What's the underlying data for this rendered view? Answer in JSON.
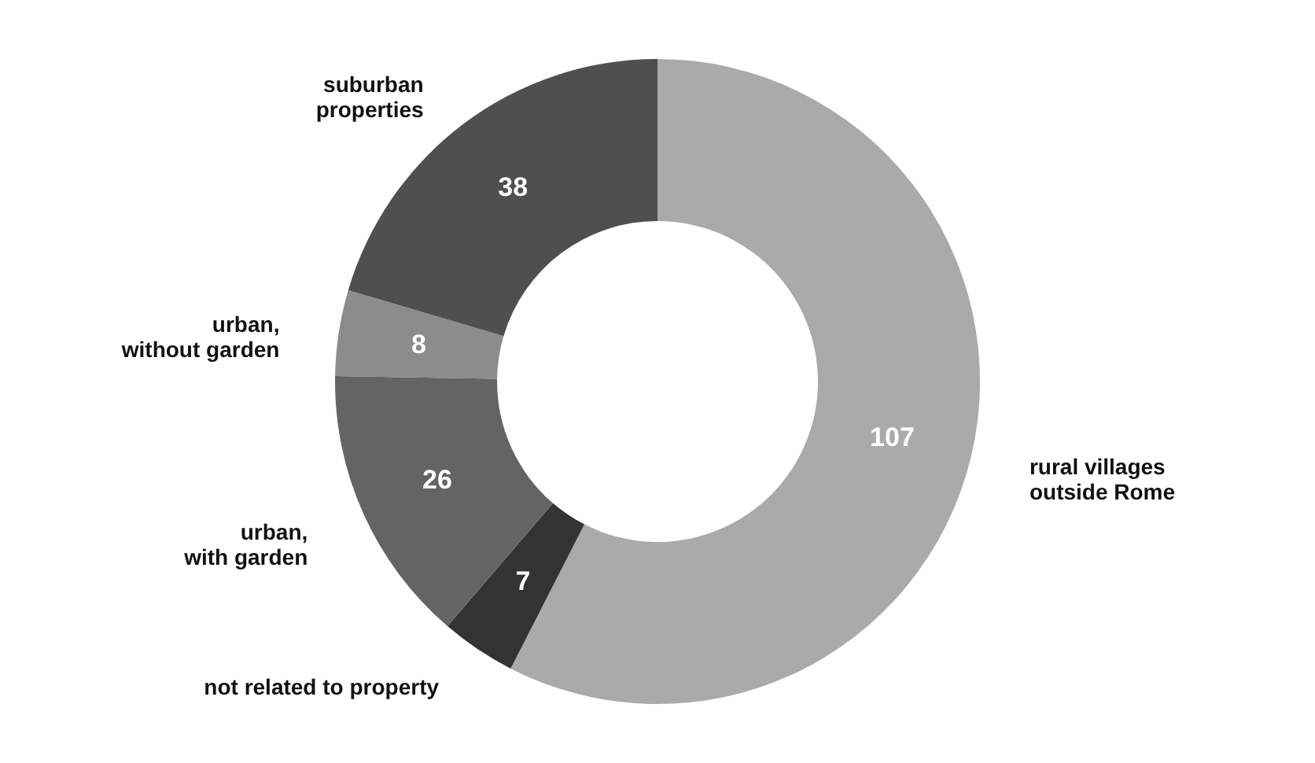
{
  "chart_data": {
    "type": "donut",
    "categories": [
      "rural villages\noutside Rome",
      "not related to property",
      "urban,\nwith garden",
      "urban,\nwithout garden",
      "suburban\nproperties"
    ],
    "values": [
      107,
      7,
      26,
      8,
      38
    ],
    "colors": [
      "#aaaaaa",
      "#333333",
      "#646464",
      "#8c8c8c",
      "#4f4f4f"
    ],
    "data_labels": true,
    "legend": false
  }
}
